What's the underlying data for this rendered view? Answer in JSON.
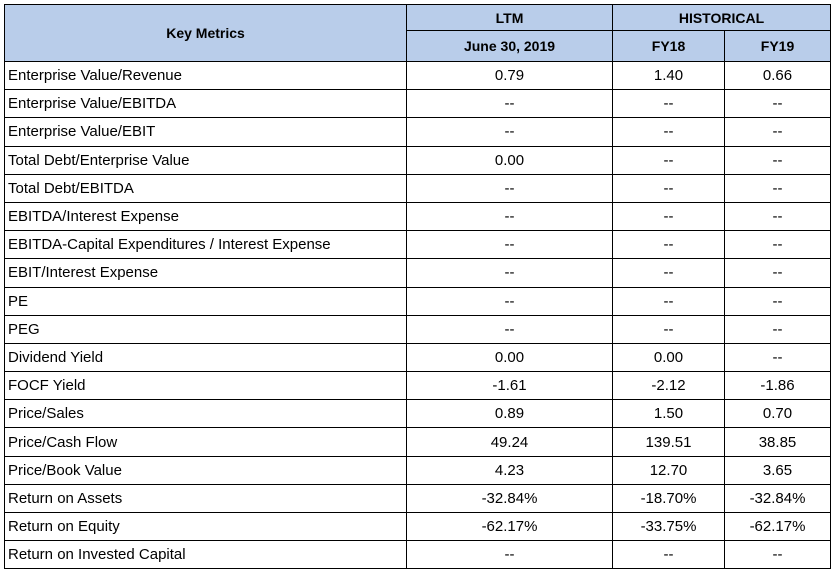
{
  "header": {
    "key_metrics": "Key Metrics",
    "ltm": "LTM",
    "historical": "HISTORICAL",
    "ltm_date": "June 30, 2019",
    "fy18": "FY18",
    "fy19": "FY19"
  },
  "rows": [
    {
      "label": "Enterprise Value/Revenue",
      "ltm": "0.79",
      "fy18": "1.40",
      "fy19": "0.66"
    },
    {
      "label": "Enterprise Value/EBITDA",
      "ltm": "--",
      "fy18": "--",
      "fy19": "--"
    },
    {
      "label": "Enterprise Value/EBIT",
      "ltm": "--",
      "fy18": "--",
      "fy19": "--"
    },
    {
      "label": "Total Debt/Enterprise Value",
      "ltm": "0.00",
      "fy18": "--",
      "fy19": "--"
    },
    {
      "label": "Total Debt/EBITDA",
      "ltm": "--",
      "fy18": "--",
      "fy19": "--"
    },
    {
      "label": "EBITDA/Interest Expense",
      "ltm": "--",
      "fy18": "--",
      "fy19": "--"
    },
    {
      "label": "EBITDA-Capital Expenditures / Interest Expense",
      "ltm": "--",
      "fy18": "--",
      "fy19": "--"
    },
    {
      "label": "EBIT/Interest Expense",
      "ltm": "--",
      "fy18": "--",
      "fy19": "--"
    },
    {
      "label": "PE",
      "ltm": "--",
      "fy18": "--",
      "fy19": "--"
    },
    {
      "label": "PEG",
      "ltm": "--",
      "fy18": "--",
      "fy19": "--"
    },
    {
      "label": "Dividend Yield",
      "ltm": "0.00",
      "fy18": "0.00",
      "fy19": "--"
    },
    {
      "label": "FOCF Yield",
      "ltm": "-1.61",
      "fy18": "-2.12",
      "fy19": "-1.86"
    },
    {
      "label": "Price/Sales",
      "ltm": "0.89",
      "fy18": "1.50",
      "fy19": "0.70"
    },
    {
      "label": "Price/Cash Flow",
      "ltm": "49.24",
      "fy18": "139.51",
      "fy19": "38.85"
    },
    {
      "label": "Price/Book Value",
      "ltm": "4.23",
      "fy18": "12.70",
      "fy19": "3.65"
    },
    {
      "label": "Return on Assets",
      "ltm": "-32.84%",
      "fy18": "-18.70%",
      "fy19": "-32.84%"
    },
    {
      "label": "Return on Equity",
      "ltm": "-62.17%",
      "fy18": "-33.75%",
      "fy19": "-62.17%"
    },
    {
      "label": "Return on Invested Capital",
      "ltm": "--",
      "fy18": "--",
      "fy19": "--"
    }
  ],
  "colors": {
    "header_fill": "#b9cdea",
    "border": "#000000",
    "row_divider": "#7f7f7f"
  }
}
